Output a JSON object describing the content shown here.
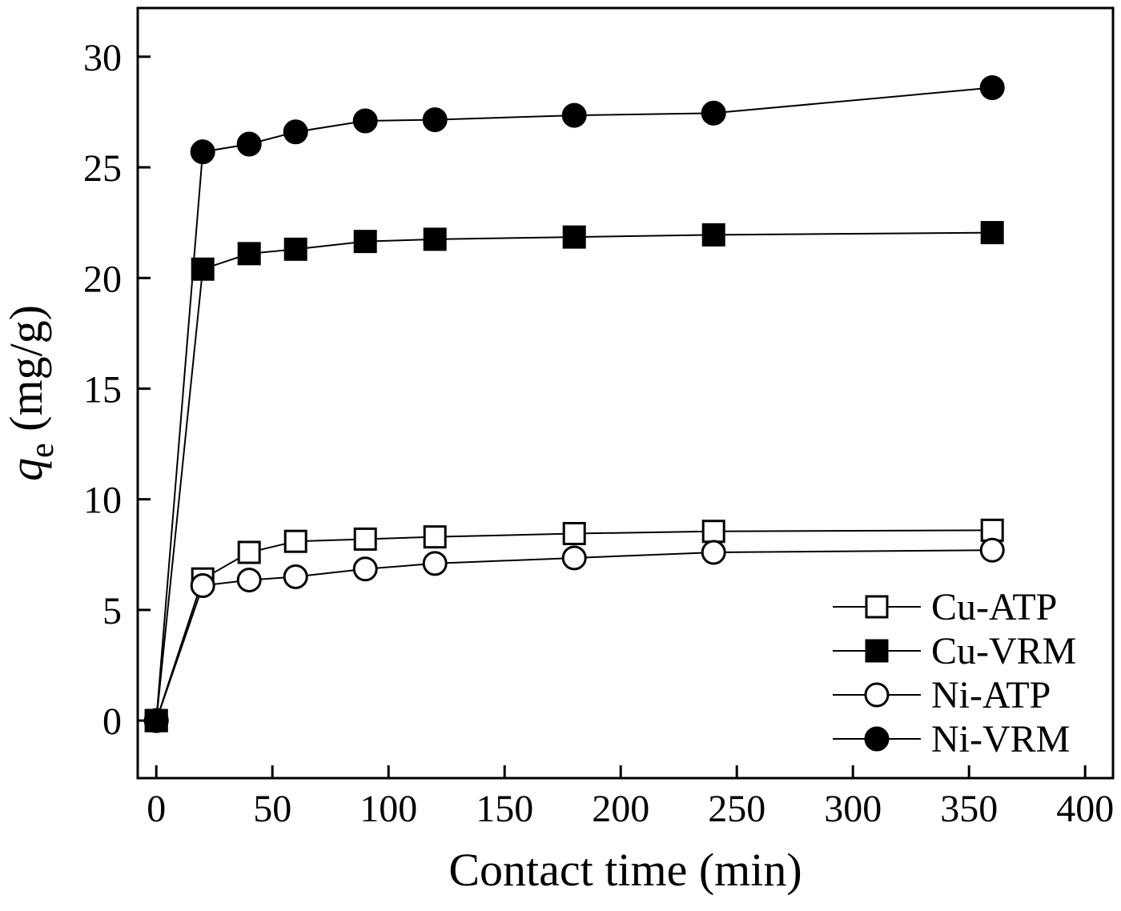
{
  "chart_data": {
    "type": "line",
    "title": "",
    "xlabel": "Contact time (min)",
    "ylabel_parts": {
      "var": "q",
      "sub": "e",
      "rest": " (mg/g)"
    },
    "xlim": [
      -8,
      412
    ],
    "ylim": [
      -2.6,
      32.2
    ],
    "xticks": [
      0,
      50,
      100,
      150,
      200,
      250,
      300,
      350,
      400
    ],
    "yticks": [
      0,
      5,
      10,
      15,
      20,
      25,
      30
    ],
    "grid": false,
    "legend_position": "bottom-right",
    "line_color": "#000000",
    "x": [
      0,
      20,
      40,
      60,
      90,
      120,
      180,
      240,
      360
    ],
    "series": [
      {
        "name": "Cu-ATP",
        "marker": "square-open",
        "values": [
          0,
          6.4,
          7.6,
          8.1,
          8.2,
          8.3,
          8.45,
          8.55,
          8.6
        ]
      },
      {
        "name": "Cu-VRM",
        "marker": "square-filled",
        "values": [
          0,
          20.4,
          21.1,
          21.3,
          21.65,
          21.75,
          21.85,
          21.95,
          22.05
        ]
      },
      {
        "name": "Ni-ATP",
        "marker": "circle-open",
        "values": [
          0,
          6.1,
          6.35,
          6.5,
          6.85,
          7.1,
          7.35,
          7.6,
          7.7
        ]
      },
      {
        "name": "Ni-VRM",
        "marker": "circle-filled",
        "values": [
          0,
          25.7,
          26.05,
          26.6,
          27.1,
          27.15,
          27.35,
          27.45,
          28.6
        ]
      }
    ]
  }
}
